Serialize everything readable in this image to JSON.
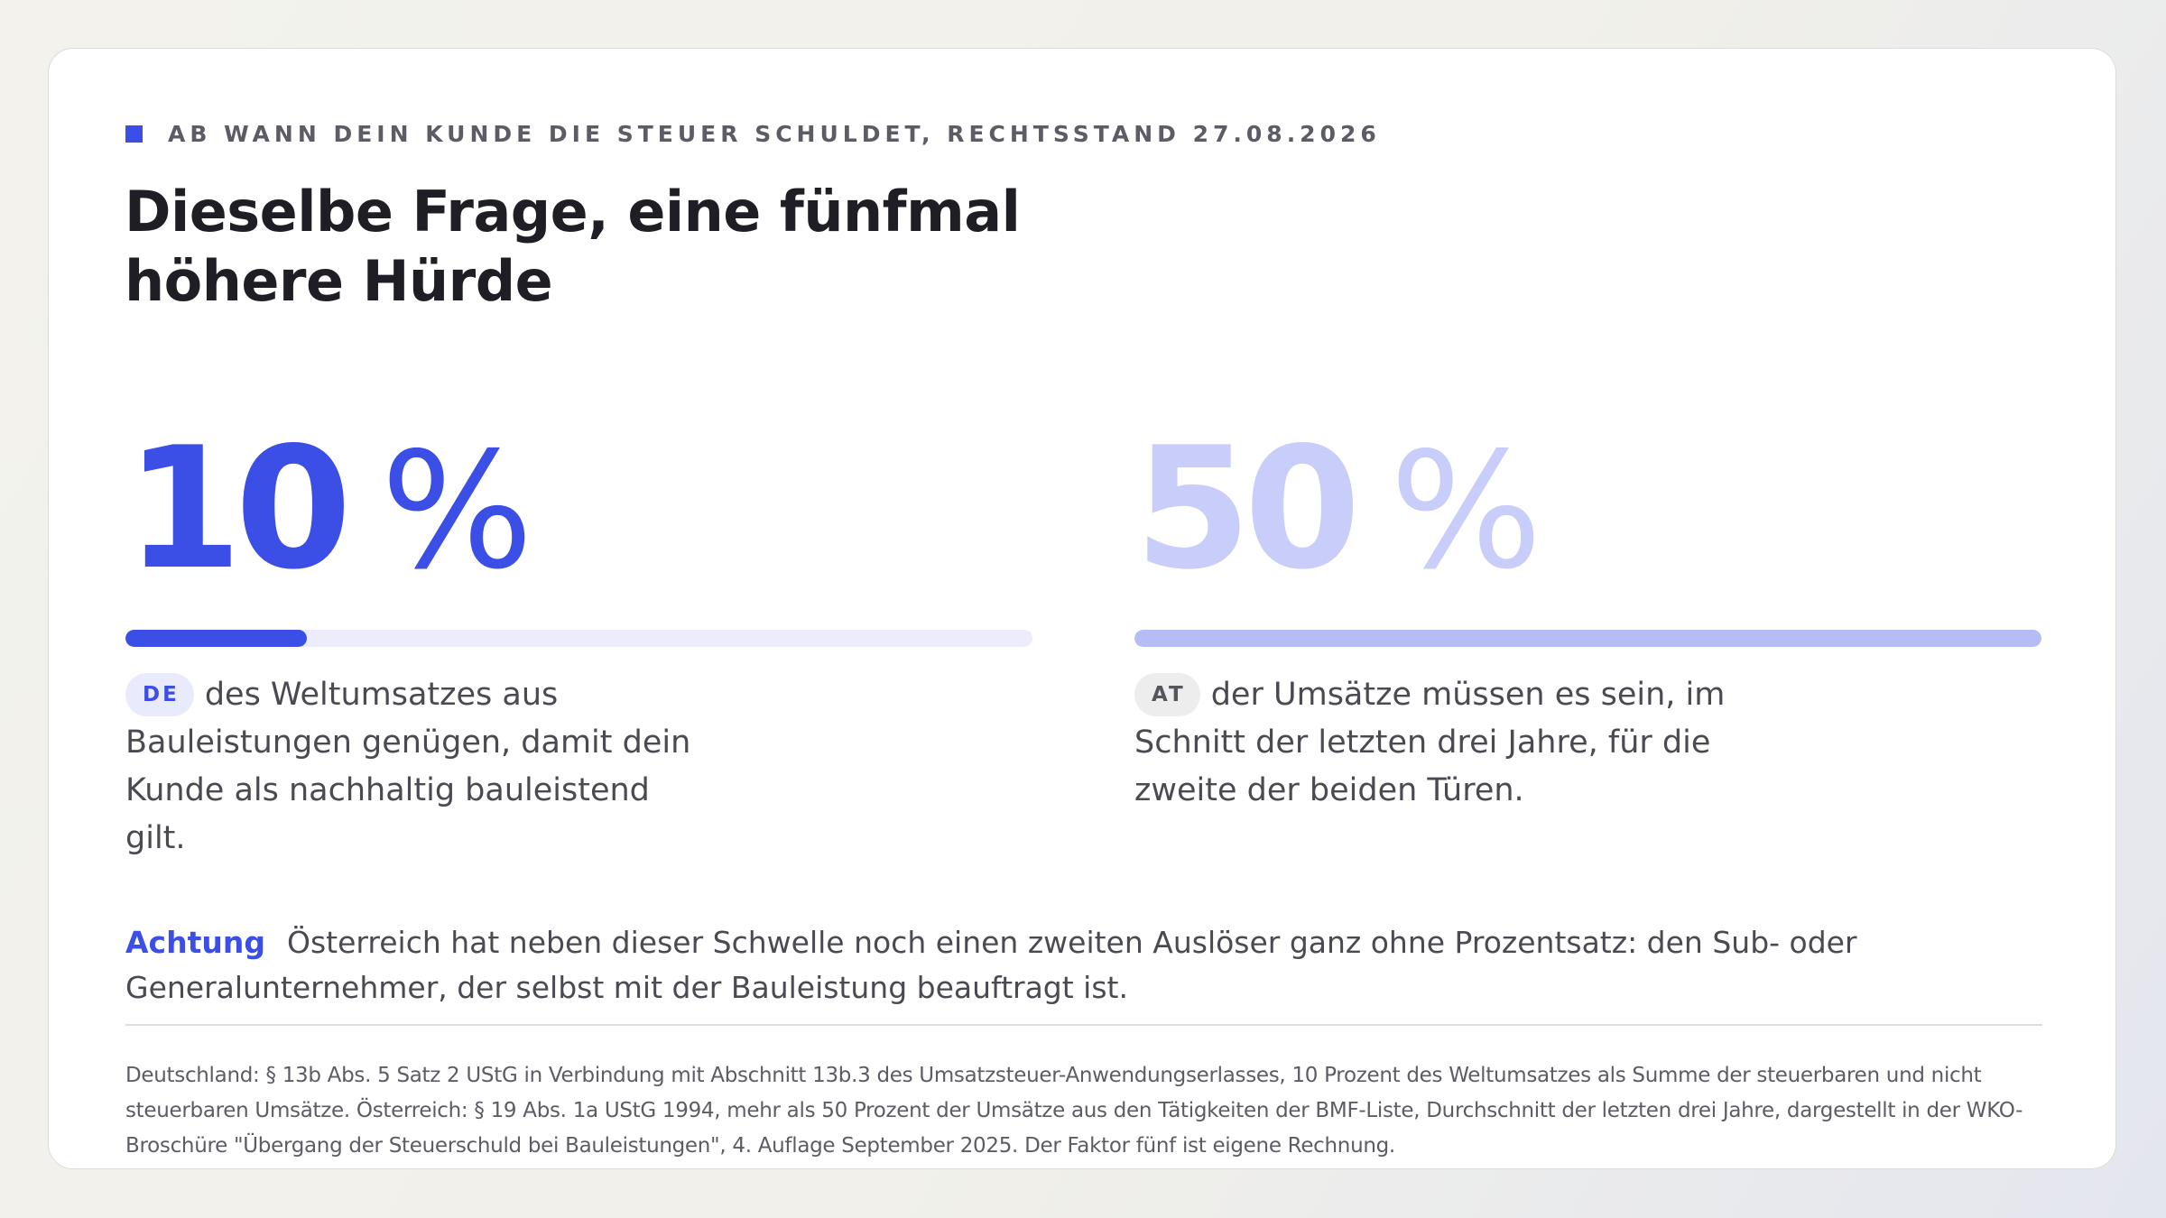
{
  "eyebrow": "AB WANN DEIN KUNDE DIE STEUER SCHULDET, RECHTSSTAND 27.08.2026",
  "title": "Dieselbe Frage, eine fünfmal höhere Hürde",
  "stats": [
    {
      "number": "10",
      "unit": "%",
      "bar_fill_percent": 20,
      "badge": "DE",
      "description": "des Weltumsatzes aus Bauleistungen genügen, damit dein Kunde als nachhaltig bauleistend gilt."
    },
    {
      "number": "50",
      "unit": "%",
      "bar_fill_percent": 100,
      "badge": "AT",
      "description": "der Umsätze müssen es sein, im Schnitt der letzten drei Jahre, für die zweite der beiden Türen."
    }
  ],
  "note": {
    "label": "Achtung",
    "text": "Österreich hat neben dieser Schwelle noch einen zweiten Auslöser ganz ohne Prozentsatz: den Sub- oder Generalunternehmer, der selbst mit der Bauleistung beauftragt ist."
  },
  "footnote": "Deutschland: § 13b Abs. 5 Satz 2 UStG in Verbindung mit Abschnitt 13b.3 des Umsatzsteuer-Anwendungserlasses, 10 Prozent des Weltumsatzes als Summe der steuerbaren und nicht steuerbaren Umsätze. Österreich: § 19 Abs. 1a UStG 1994, mehr als 50 Prozent der Umsätze aus den Tätigkeiten der BMF-Liste, Durchschnitt der letzten drei Jahre, dargestellt in der WKO-Broschüre \"Übergang der Steuerschuld bei Bauleistungen\", 4. Auflage September 2025. Der Faktor fünf ist eigene Rechnung.",
  "colors": {
    "accent": "#3b4fe6",
    "accent_light": "#c8cdfa",
    "bar_track": "#ececfc"
  }
}
